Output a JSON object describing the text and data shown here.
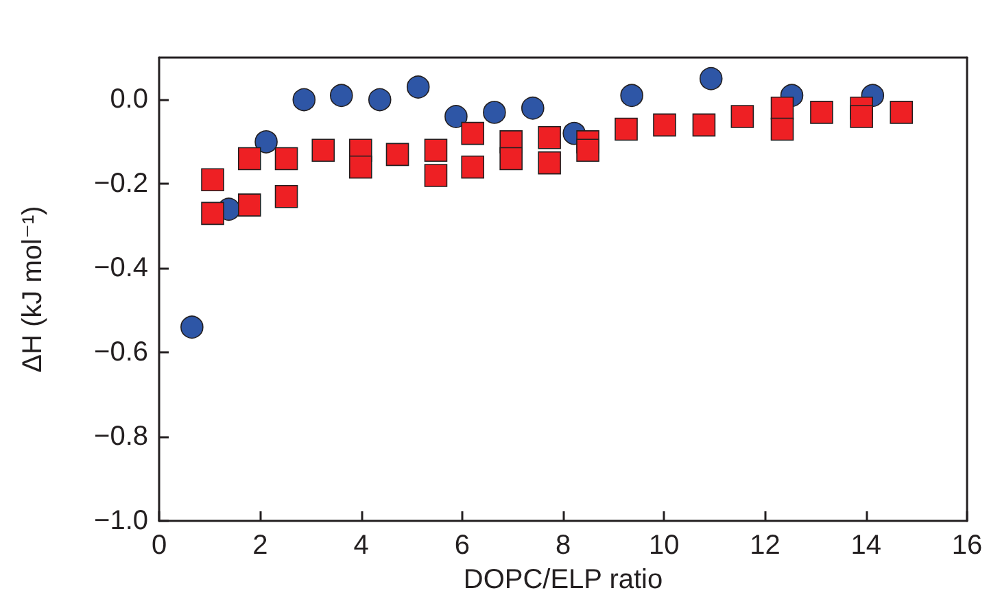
{
  "chart_data": {
    "type": "scatter",
    "xlabel": "DOPC/ELP ratio",
    "ylabel": "ΔH (kJ mol⁻¹)",
    "xlim": [
      0,
      16
    ],
    "xticks": [
      0,
      2,
      4,
      6,
      8,
      10,
      12,
      14,
      16
    ],
    "ylim": [
      -1.0,
      0.1
    ],
    "yticks": [
      {
        "value": -1.0,
        "label": "−1.0"
      },
      {
        "value": -0.8,
        "label": "−0.8"
      },
      {
        "value": -0.6,
        "label": "−0.6"
      },
      {
        "value": -0.4,
        "label": "−0.4"
      },
      {
        "value": -0.2,
        "label": "−0.2"
      },
      {
        "value": 0,
        "label": "0.0"
      }
    ],
    "grid": false,
    "series": [
      {
        "marker": "circle",
        "color": "#2e56a6",
        "x": [
          0.65,
          1.38,
          2.12,
          2.87,
          3.61,
          4.37,
          5.13,
          5.88,
          6.64,
          7.4,
          8.22,
          9.36,
          10.93,
          12.53,
          14.13
        ],
        "values": [
          -0.54,
          -0.26,
          -0.1,
          0.0,
          0.01,
          0.0,
          0.03,
          -0.04,
          -0.03,
          -0.02,
          -0.08,
          0.01,
          0.05,
          0.01,
          0.01
        ]
      },
      {
        "marker": "square",
        "color": "#ee2024",
        "x": [
          1.06,
          1.06,
          1.79,
          1.79,
          2.52,
          2.52,
          3.25,
          3.99,
          3.99,
          4.72,
          5.48,
          5.48,
          6.21,
          6.21,
          6.97,
          6.97,
          7.73,
          7.73,
          8.49,
          8.49,
          9.25,
          10.01,
          10.79,
          11.55,
          12.34,
          12.34,
          13.12,
          13.91,
          13.91,
          14.7
        ],
        "values": [
          -0.19,
          -0.27,
          -0.14,
          -0.25,
          -0.14,
          -0.23,
          -0.12,
          -0.12,
          -0.16,
          -0.13,
          -0.12,
          -0.18,
          -0.08,
          -0.16,
          -0.1,
          -0.14,
          -0.09,
          -0.15,
          -0.1,
          -0.12,
          -0.07,
          -0.06,
          -0.06,
          -0.04,
          -0.02,
          -0.07,
          -0.03,
          -0.02,
          -0.04,
          -0.03
        ]
      }
    ]
  }
}
